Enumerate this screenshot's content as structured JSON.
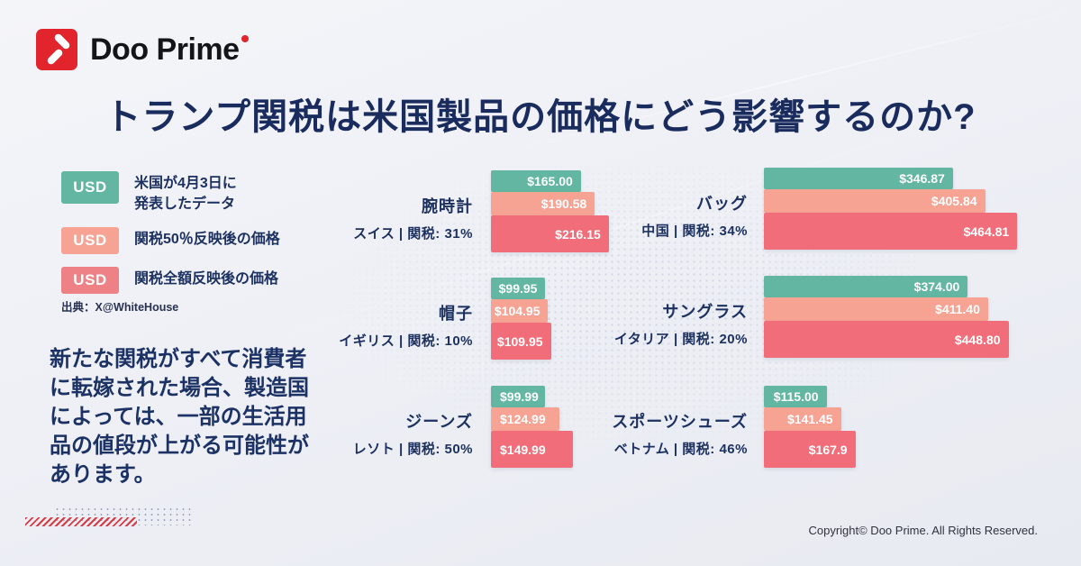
{
  "brand": {
    "name": "Doo Prime"
  },
  "title": "トランプ関税は米国製品の価格にどう影響するのか?",
  "legend": {
    "items": [
      {
        "badge": "USD",
        "label": "米国が4月3日に\n発表したデータ",
        "color": "#62b6a2"
      },
      {
        "badge": "USD",
        "label": "関税50％反映後の価格",
        "color": "#f6a394"
      },
      {
        "badge": "USD",
        "label": "関税全額反映後の価格",
        "color": "#ee8186"
      }
    ],
    "source": "出典：X@WhiteHouse"
  },
  "note": "新たな関税がすべて消費者\nに転嫁された場合、製造国\nによっては、一部の生活用\n品の値段が上がる可能性が\nあります。",
  "chart_data": {
    "type": "bar",
    "orientation": "horizontal",
    "unit": "USD",
    "series_names": [
      "米国が4月3日に発表したデータ",
      "関税50％反映後の価格",
      "関税全額反映後の価格"
    ],
    "colors": [
      "#62b6a2",
      "#f6a394",
      "#f06d79"
    ],
    "groups": [
      {
        "product": "腕時計",
        "origin": "スイス | 関税: 31%",
        "labels": [
          "$165.00",
          "$190.58",
          "$216.15"
        ],
        "values": [
          165.0,
          190.58,
          216.15
        ]
      },
      {
        "product": "バッグ",
        "origin": "中国 | 関税: 34%",
        "labels": [
          "$346.87",
          "$405.84",
          "$464.81"
        ],
        "values": [
          346.87,
          405.84,
          464.81
        ]
      },
      {
        "product": "帽子",
        "origin": "イギリス | 関税: 10%",
        "labels": [
          "$99.95",
          "$104.95",
          "$109.95"
        ],
        "values": [
          99.95,
          104.95,
          109.95
        ]
      },
      {
        "product": "サングラス",
        "origin": "イタリア | 関税: 20%",
        "labels": [
          "$374.00",
          "$411.40",
          "$448.80"
        ],
        "values": [
          374.0,
          411.4,
          448.8
        ]
      },
      {
        "product": "ジーンズ",
        "origin": "レソト | 関税: 50%",
        "labels": [
          "$99.99",
          "$124.99",
          "$149.99"
        ],
        "values": [
          99.99,
          124.99,
          149.99
        ]
      },
      {
        "product": "スポーツシューズ",
        "origin": "ベトナム | 関税: 46%",
        "labels": [
          "$115.00",
          "$141.45",
          "$167.9"
        ],
        "values": [
          115.0,
          141.45,
          167.9
        ]
      }
    ]
  },
  "footer": {
    "copyright": "Copyright© Doo Prime. All Rights Reserved."
  }
}
